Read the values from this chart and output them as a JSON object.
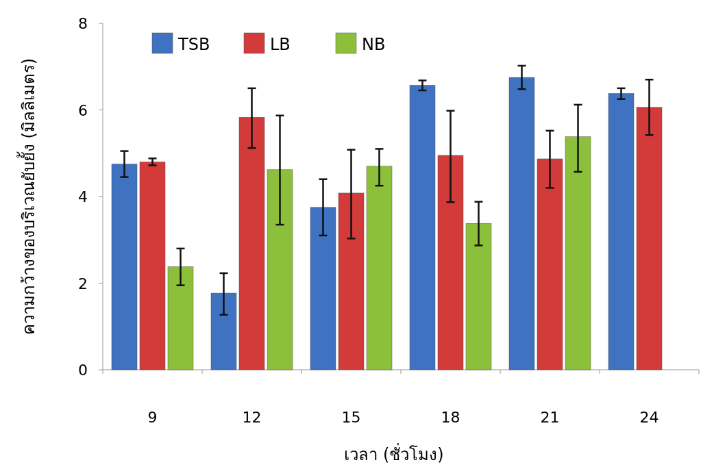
{
  "chart_data": {
    "type": "bar",
    "xlabel": "เวลา (ชั่วโมง)",
    "ylabel": "ความกว้างของบริเวณยับยั้ง (มิลลิเมตร)",
    "categories": [
      "9",
      "12",
      "15",
      "18",
      "21",
      "24"
    ],
    "series": [
      {
        "name": "TSB",
        "color": "#3f72c0",
        "values": [
          4.75,
          1.77,
          3.75,
          6.57,
          6.75,
          6.38
        ],
        "errors": [
          [
            4.45,
            5.05
          ],
          [
            1.27,
            2.23
          ],
          [
            3.1,
            4.4
          ],
          [
            6.45,
            6.68
          ],
          [
            6.48,
            7.02
          ],
          [
            6.25,
            6.5
          ]
        ]
      },
      {
        "name": "LB",
        "color": "#d33a3a",
        "values": [
          4.8,
          5.83,
          4.08,
          4.95,
          4.87,
          6.06
        ],
        "errors": [
          [
            4.72,
            4.88
          ],
          [
            5.12,
            6.5
          ],
          [
            3.03,
            5.08
          ],
          [
            3.87,
            5.98
          ],
          [
            4.2,
            5.52
          ],
          [
            5.42,
            6.7
          ]
        ]
      },
      {
        "name": "NB",
        "color": "#8dc03a",
        "values": [
          2.38,
          4.62,
          4.7,
          3.38,
          5.38,
          null
        ],
        "errors": [
          [
            1.95,
            2.8
          ],
          [
            3.35,
            5.87
          ],
          [
            4.25,
            5.1
          ],
          [
            2.87,
            3.88
          ],
          [
            4.57,
            6.12
          ],
          null
        ]
      }
    ],
    "ylim": [
      0,
      8
    ],
    "yticks": [
      0,
      2,
      4,
      6,
      8
    ],
    "legend": "top left"
  }
}
